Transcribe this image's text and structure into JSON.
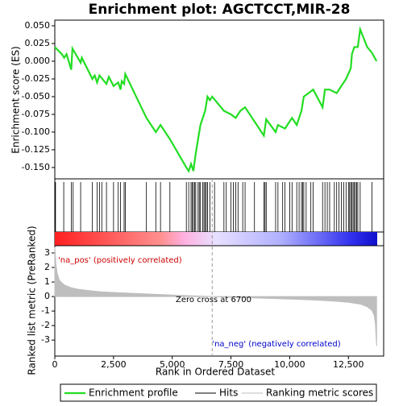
{
  "chart_data": [
    {
      "type": "line",
      "title": "Enrichment plot: AGCTCCT,MIR-28",
      "ylabel": "Enrichment score (ES)",
      "x": [
        0,
        300,
        400,
        500,
        700,
        750,
        1100,
        1150,
        1600,
        1700,
        1800,
        1900,
        2200,
        2300,
        2500,
        2700,
        2800,
        2850,
        2950,
        3000,
        3900,
        4300,
        4500,
        4900,
        5600,
        5700,
        5800,
        5900,
        6000,
        6100,
        6200,
        6300,
        6400,
        6500,
        6600,
        6700,
        7200,
        7500,
        7700,
        7900,
        8100,
        8500,
        8900,
        9000,
        9400,
        9500,
        9800,
        9900,
        10100,
        10300,
        10500,
        10600,
        10800,
        11000,
        11400,
        11500,
        11700,
        12000,
        12200,
        12400,
        12600,
        12650,
        12750,
        12900,
        13000,
        13300,
        13500,
        13700
      ],
      "series": [
        {
          "name": "Enrichment profile",
          "color": "#22dd22",
          "values": [
            0.02,
            0.01,
            0.005,
            0.01,
            -0.012,
            0.018,
            -0.002,
            0.005,
            -0.025,
            -0.02,
            -0.03,
            -0.02,
            -0.032,
            -0.022,
            -0.035,
            -0.03,
            -0.04,
            -0.028,
            -0.032,
            -0.018,
            -0.08,
            -0.1,
            -0.09,
            -0.11,
            -0.15,
            -0.155,
            -0.145,
            -0.155,
            -0.13,
            -0.11,
            -0.09,
            -0.08,
            -0.07,
            -0.05,
            -0.055,
            -0.05,
            -0.07,
            -0.075,
            -0.08,
            -0.07,
            -0.065,
            -0.085,
            -0.105,
            -0.082,
            -0.1,
            -0.09,
            -0.095,
            -0.09,
            -0.08,
            -0.09,
            -0.07,
            -0.05,
            -0.045,
            -0.04,
            -0.065,
            -0.04,
            -0.04,
            -0.045,
            -0.035,
            -0.025,
            -0.01,
            0.01,
            0.02,
            0.02,
            0.045,
            0.02,
            0.012,
            0.0
          ]
        }
      ],
      "xlim": [
        0,
        14000
      ],
      "ylim": [
        -0.166,
        0.058
      ],
      "yticks": [
        {
          "value": 0.05,
          "label": "0.050"
        },
        {
          "value": 0.025,
          "label": "0.025"
        },
        {
          "value": 0,
          "label": "0.000"
        },
        {
          "value": -0.025,
          "label": "-0.025"
        },
        {
          "value": -0.05,
          "label": "-0.050"
        },
        {
          "value": -0.075,
          "label": "-0.075"
        },
        {
          "value": -0.1,
          "label": "-0.100"
        },
        {
          "value": -0.125,
          "label": "-0.125"
        },
        {
          "value": -0.15,
          "label": "-0.150"
        }
      ]
    },
    {
      "type": "hits",
      "xlim": [
        0,
        14000
      ],
      "series": [
        {
          "name": "Hits",
          "color": "#000000",
          "x": [
            30,
            380,
            700,
            780,
            1100,
            1600,
            1800,
            1900,
            2000,
            2200,
            2500,
            2700,
            2800,
            2950,
            3000,
            3900,
            4300,
            4500,
            4900,
            5600,
            5700,
            5800,
            5850,
            5900,
            5950,
            6000,
            6100,
            6150,
            6200,
            6300,
            6350,
            6400,
            6450,
            6500,
            6600,
            6800,
            7200,
            7300,
            7500,
            7600,
            7700,
            7800,
            8000,
            8100,
            8500,
            8900,
            8950,
            9000,
            9400,
            9500,
            9700,
            9800,
            10000,
            10100,
            10300,
            10400,
            10500,
            10550,
            10600,
            10700,
            10900,
            11000,
            11400,
            11500,
            11600,
            11700,
            11900,
            12000,
            12100,
            12200,
            12300,
            12400,
            12500,
            12550,
            12600,
            12650,
            12700,
            12750,
            12800,
            12850,
            12900,
            13000,
            13500
          ]
        }
      ]
    },
    {
      "type": "area",
      "xlabel": "Rank in Ordered Dataset",
      "ylabel": "Ranked list metric (PreRanked)",
      "x": [
        0,
        50,
        100,
        200,
        400,
        700,
        1000,
        1500,
        2000,
        3000,
        4000,
        5000,
        6000,
        6700,
        7500,
        8500,
        9500,
        10500,
        11500,
        12000,
        12500,
        13000,
        13300,
        13500,
        13600,
        13650,
        13700
      ],
      "series": [
        {
          "name": "Ranking metric scores",
          "color": "#bebebe",
          "values": [
            3.4,
            2.2,
            1.6,
            1.1,
            0.8,
            0.6,
            0.5,
            0.4,
            0.32,
            0.24,
            0.17,
            0.1,
            0.04,
            0,
            -0.05,
            -0.1,
            -0.15,
            -0.2,
            -0.28,
            -0.33,
            -0.4,
            -0.52,
            -0.7,
            -0.95,
            -1.3,
            -1.9,
            -3.4
          ]
        }
      ],
      "xlim": [
        0,
        14000
      ],
      "ylim": [
        -4.1,
        3.5
      ],
      "yticks": [
        3,
        2,
        1,
        0,
        -1,
        -2,
        -3
      ],
      "xticks": [
        0,
        {
          "value": 2500,
          "label": "2,500"
        },
        {
          "value": 5000,
          "label": "5,000"
        },
        {
          "value": 7500,
          "label": "7,500"
        },
        {
          "value": 10000,
          "label": "10,000"
        },
        {
          "value": 12500,
          "label": "12,500"
        }
      ],
      "zero_cross": 6700,
      "annotations": [
        "'na_pos' (positively correlated)",
        "Zero cross at 6700",
        "'na_neg' (negatively correlated)"
      ]
    }
  ]
}
